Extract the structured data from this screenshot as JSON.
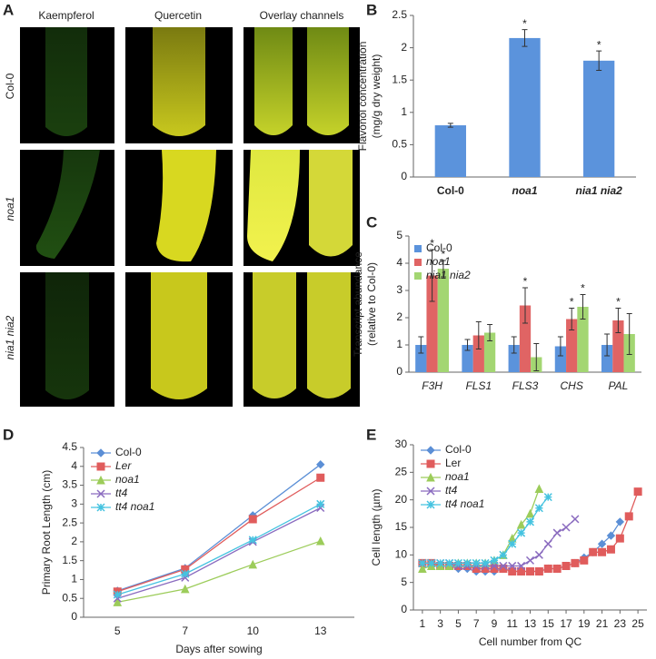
{
  "panel_a": {
    "panel": "A",
    "columns": [
      "Kaempferol",
      "Quercetin",
      "Overlay channels"
    ],
    "rows": [
      "Col-0",
      "noa1",
      "nia1 nia2"
    ]
  },
  "chart_data": [
    {
      "type": "bar",
      "panel": "B",
      "ylabel": [
        "Flavonol concentration",
        "(mg/g dry weight)"
      ],
      "categories": [
        "Col-0",
        "noa1",
        "nia1 nia2"
      ],
      "values": [
        0.8,
        2.15,
        1.8
      ],
      "errors": [
        0.03,
        0.13,
        0.15
      ],
      "color": "#5b93dc",
      "ylim": [
        0,
        2.5
      ],
      "yticks": [
        0,
        0.5,
        1,
        1.5,
        2,
        2.5
      ],
      "annotations": [
        {
          "category": "noa1",
          "text": "*"
        },
        {
          "category": "nia1 nia2",
          "text": "*"
        }
      ]
    },
    {
      "type": "bar",
      "panel": "C",
      "ylabel": [
        "Transcript abundance",
        "(relative to Col-0)"
      ],
      "categories": [
        "F3H",
        "FLS1",
        "FLS3",
        "CHS",
        "PAL"
      ],
      "series": [
        {
          "name": "Col-0",
          "color": "#5b93dc",
          "values": [
            1.0,
            1.0,
            1.0,
            0.95,
            1.0
          ],
          "errors": [
            0.3,
            0.2,
            0.3,
            0.35,
            0.4
          ]
        },
        {
          "name": "noa1",
          "color": "#e06464",
          "values": [
            3.55,
            1.35,
            2.45,
            1.95,
            1.9
          ],
          "errors": [
            0.95,
            0.5,
            0.65,
            0.4,
            0.45
          ]
        },
        {
          "name": "nia1 nia2",
          "color": "#a3d672",
          "values": [
            3.8,
            1.45,
            0.55,
            2.4,
            1.4
          ],
          "errors": [
            0.3,
            0.3,
            0.5,
            0.45,
            0.75
          ]
        }
      ],
      "ylim": [
        0,
        5
      ],
      "yticks": [
        0,
        1,
        2,
        3,
        4,
        5
      ],
      "legend": "upper left",
      "annotations": [
        {
          "category": "F3H",
          "series": "noa1",
          "text": "*"
        },
        {
          "category": "F3H",
          "series": "nia1 nia2",
          "text": "*"
        },
        {
          "category": "FLS3",
          "series": "noa1",
          "text": "*"
        },
        {
          "category": "CHS",
          "series": "noa1",
          "text": "*"
        },
        {
          "category": "CHS",
          "series": "nia1 nia2",
          "text": "*"
        },
        {
          "category": "PAL",
          "series": "noa1",
          "text": "*"
        }
      ]
    },
    {
      "type": "line",
      "panel": "D",
      "ylabel": [
        "Primary Root Length (cm)"
      ],
      "xlabel": "Days after sowing",
      "categories": [
        "5",
        "7",
        "10",
        "13"
      ],
      "series": [
        {
          "name": "Col-0",
          "color": "#5b8fd6",
          "marker": "diamond",
          "values": [
            0.7,
            1.3,
            2.7,
            4.05
          ]
        },
        {
          "name": "Ler",
          "color": "#e05c5c",
          "marker": "square",
          "values": [
            0.68,
            1.27,
            2.6,
            3.7
          ]
        },
        {
          "name": "noa1",
          "color": "#9ccc5a",
          "marker": "triangle",
          "values": [
            0.4,
            0.75,
            1.4,
            2.02
          ]
        },
        {
          "name": "tt4",
          "color": "#8a6bbf",
          "marker": "x",
          "values": [
            0.5,
            1.05,
            2.0,
            2.9
          ]
        },
        {
          "name": "tt4 noa1",
          "color": "#45c3e0",
          "marker": "star",
          "values": [
            0.6,
            1.15,
            2.05,
            3.0
          ]
        }
      ],
      "ylim": [
        0,
        4.5
      ],
      "yticks": [
        0,
        0.5,
        1,
        1.5,
        2,
        2.5,
        3,
        3.5,
        4,
        4.5
      ],
      "legend": "upper left"
    },
    {
      "type": "line",
      "panel": "E",
      "ylabel": [
        "Cell length (µm)"
      ],
      "xlabel": "Cell number from QC",
      "x": [
        1,
        2,
        3,
        4,
        5,
        6,
        7,
        8,
        9,
        10,
        11,
        12,
        13,
        14,
        15,
        16,
        17,
        18,
        19,
        20,
        21,
        22,
        23,
        24,
        25
      ],
      "series": [
        {
          "name": "Col-0",
          "color": "#5b8fd6",
          "marker": "diamond",
          "values": [
            8.5,
            8.5,
            8,
            8,
            7.5,
            7.5,
            7,
            7,
            7,
            7.5,
            7,
            7,
            7,
            7,
            7.5,
            7.5,
            8,
            8.5,
            9.5,
            10.5,
            12,
            13.5,
            16,
            null,
            null
          ]
        },
        {
          "name": "Ler",
          "color": "#e05c5c",
          "marker": "square",
          "values": [
            8.5,
            8.5,
            8,
            8,
            8,
            8,
            7.5,
            7.5,
            7.5,
            7.5,
            7,
            7,
            7,
            7,
            7.5,
            7.5,
            8,
            8.5,
            9,
            10.5,
            10.5,
            11,
            13,
            17,
            21.5
          ]
        },
        {
          "name": "noa1",
          "color": "#9ccc5a",
          "marker": "triangle",
          "values": [
            7.5,
            8,
            8,
            8,
            8.5,
            8.5,
            8.5,
            8.5,
            9,
            10,
            13,
            15.5,
            17.5,
            22,
            null,
            null,
            null,
            null,
            null,
            null,
            null,
            null,
            null,
            null,
            null
          ]
        },
        {
          "name": "tt4",
          "color": "#8a6bbf",
          "marker": "x",
          "values": [
            8.5,
            8.5,
            8.5,
            8.5,
            8,
            8,
            8,
            8,
            8,
            8,
            8,
            8,
            9,
            10,
            12,
            14,
            15,
            16.5,
            null,
            null,
            null,
            null,
            null,
            null,
            null
          ]
        },
        {
          "name": "tt4 noa1",
          "color": "#45c3e0",
          "marker": "star",
          "values": [
            8.5,
            8.5,
            8.5,
            8.5,
            8.5,
            8.5,
            8.5,
            8.5,
            9,
            10,
            12,
            14,
            16,
            18.5,
            20.5,
            null,
            null,
            null,
            null,
            null,
            null,
            null,
            null,
            null,
            null
          ]
        }
      ],
      "xlim": [
        0,
        26
      ],
      "xticks": [
        1,
        3,
        5,
        7,
        9,
        11,
        13,
        15,
        17,
        19,
        21,
        23,
        25
      ],
      "ylim": [
        0,
        30
      ],
      "yticks": [
        0,
        5,
        10,
        15,
        20,
        25,
        30
      ],
      "legend": "upper left"
    }
  ]
}
